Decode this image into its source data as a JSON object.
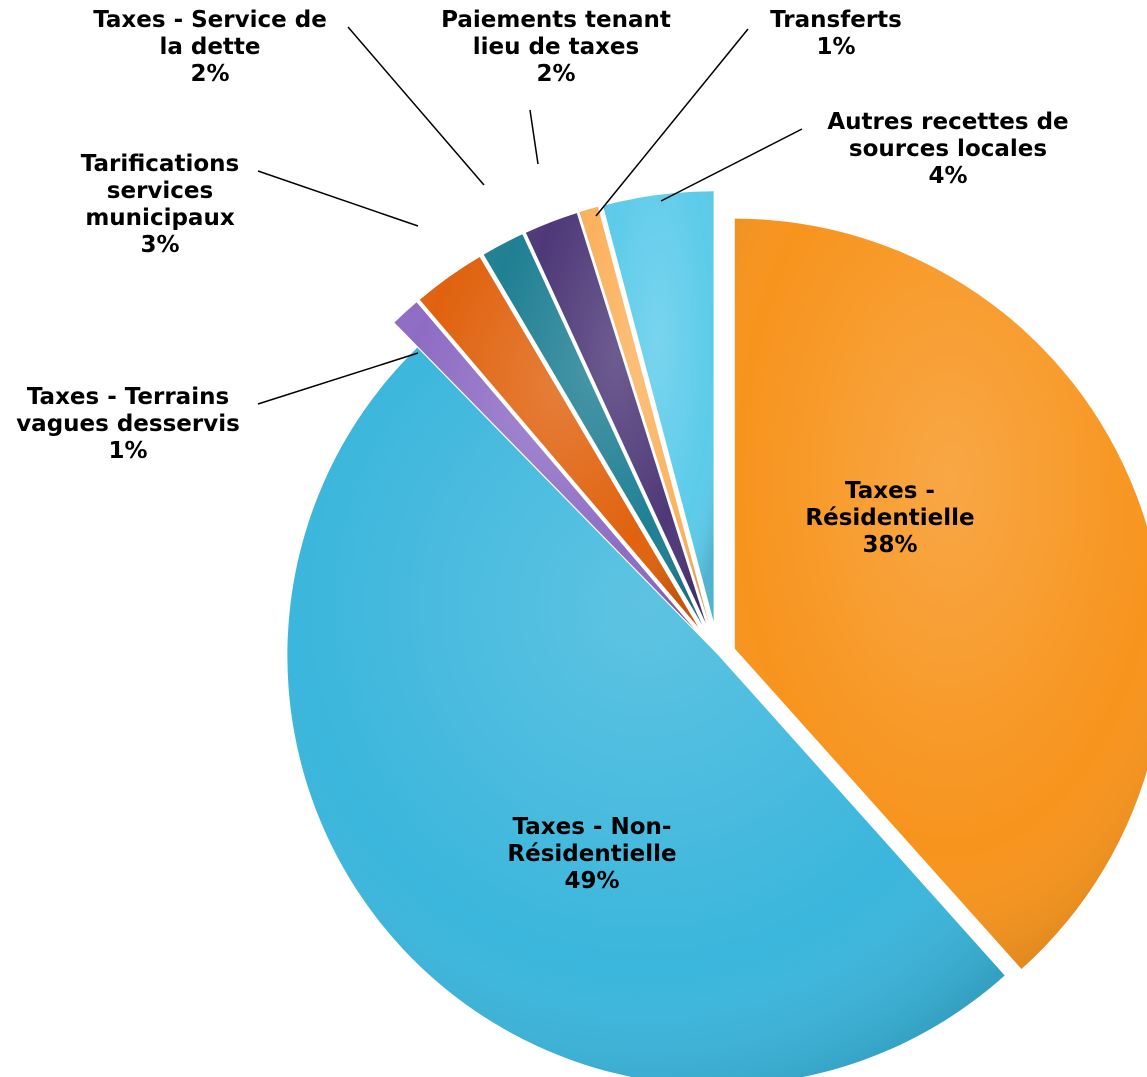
{
  "chart_data": {
    "type": "pie",
    "exploded": true,
    "legend": "none",
    "slices": [
      {
        "name": "Taxes - Résidentielle",
        "lines": [
          "Taxes -",
          "Résidentielle"
        ],
        "value_label": "38%",
        "value": 38.0,
        "color": "#F7941D"
      },
      {
        "name": "Taxes - Non-Résidentielle",
        "lines": [
          "Taxes - Non-",
          "Résidentielle"
        ],
        "value_label": "49%",
        "value": 48.8,
        "color": "#3BB6DC"
      },
      {
        "name": "Taxes - Terrains vagues desservis",
        "lines": [
          "Taxes - Terrains",
          "vagues desservis"
        ],
        "value_label": "1%",
        "value": 1.1,
        "color": "#8E6CC4"
      },
      {
        "name": "Tarifications services municipaux",
        "lines": [
          "Tarifications",
          "services",
          "municipaux"
        ],
        "value_label": "3%",
        "value": 2.7,
        "color": "#E0620E"
      },
      {
        "name": "Taxes - Service de la dette",
        "lines": [
          "Taxes - Service de",
          "la dette"
        ],
        "value_label": "2%",
        "value": 1.6,
        "color": "#1F7F93"
      },
      {
        "name": "Paiements tenant lieu de taxes",
        "lines": [
          "Paiements tenant",
          "lieu de taxes"
        ],
        "value_label": "2%",
        "value": 2.0,
        "color": "#4E3878"
      },
      {
        "name": "Transferts",
        "lines": [
          "Transferts"
        ],
        "value_label": "1%",
        "value": 0.7,
        "color": "#FBB25E"
      },
      {
        "name": "Autres recettes de sources locales",
        "lines": [
          "Autres recettes de",
          "sources locales"
        ],
        "value_label": "4%",
        "value": 4.1,
        "color": "#5CCBEA"
      }
    ]
  }
}
